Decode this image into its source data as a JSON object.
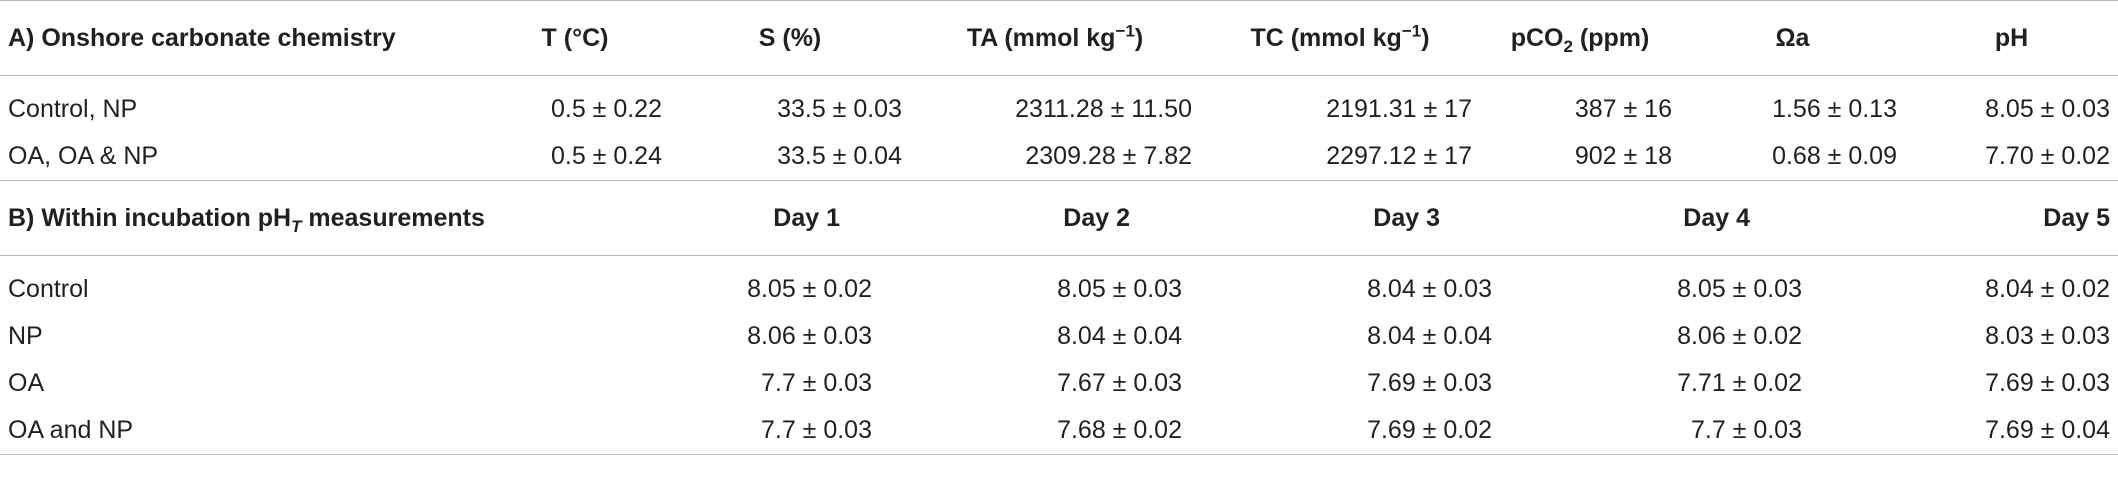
{
  "section_a": {
    "title": "A) Onshore carbonate chemistry",
    "columns": [
      {
        "main": "T (°C)",
        "sup": "",
        "sub": "",
        "tail": ""
      },
      {
        "main": "S (%)",
        "sup": "",
        "sub": "",
        "tail": ""
      },
      {
        "main": "TA (mmol kg",
        "sup": "−1",
        "sub": "",
        "tail": ")"
      },
      {
        "main": "TC (mmol kg",
        "sup": "−1",
        "sub": "",
        "tail": ")"
      },
      {
        "main": "pCO",
        "sup": "",
        "sub": "2",
        "tail": " (ppm)"
      },
      {
        "main": "Ωa",
        "sup": "",
        "sub": "",
        "tail": ""
      },
      {
        "main": "pH",
        "sup": "",
        "sub": "",
        "tail": ""
      }
    ],
    "rows": [
      {
        "label": "Control, NP",
        "values": [
          "0.5 ± 0.22",
          "33.5 ± 0.03",
          "2311.28 ± 11.50",
          "2191.31 ± 17",
          "387 ± 16",
          "1.56 ± 0.13",
          "8.05 ± 0.03"
        ]
      },
      {
        "label": "OA, OA & NP",
        "values": [
          "0.5 ± 0.24",
          "33.5 ± 0.04",
          "2309.28 ± 7.82",
          "2297.12 ± 17",
          "902 ± 18",
          "0.68 ± 0.09",
          "7.70 ± 0.02"
        ]
      }
    ]
  },
  "section_b": {
    "title_main": "B) Within incubation pH",
    "title_sub": "T",
    "title_tail": " measurements",
    "columns": [
      "Day 1",
      "Day 2",
      "Day 3",
      "Day 4",
      "Day 5"
    ],
    "rows": [
      {
        "label": "Control",
        "values": [
          "8.05 ± 0.02",
          "8.05 ± 0.03",
          "8.04 ± 0.03",
          "8.05 ± 0.03",
          "8.04 ± 0.02"
        ]
      },
      {
        "label": "NP",
        "values": [
          "8.06 ± 0.03",
          "8.04 ± 0.04",
          "8.04 ± 0.04",
          "8.06 ± 0.02",
          "8.03 ± 0.03"
        ]
      },
      {
        "label": "OA",
        "values": [
          "7.7 ± 0.03",
          "7.67 ± 0.03",
          "7.69 ± 0.03",
          "7.71 ± 0.02",
          "7.69 ± 0.03"
        ]
      },
      {
        "label": "OA and NP",
        "values": [
          "7.7 ± 0.03",
          "7.68 ± 0.02",
          "7.69 ± 0.02",
          "7.7 ± 0.03",
          "7.69 ± 0.04"
        ]
      }
    ]
  },
  "colors": {
    "text": "#231f20",
    "rule": "#b9b9b9"
  }
}
